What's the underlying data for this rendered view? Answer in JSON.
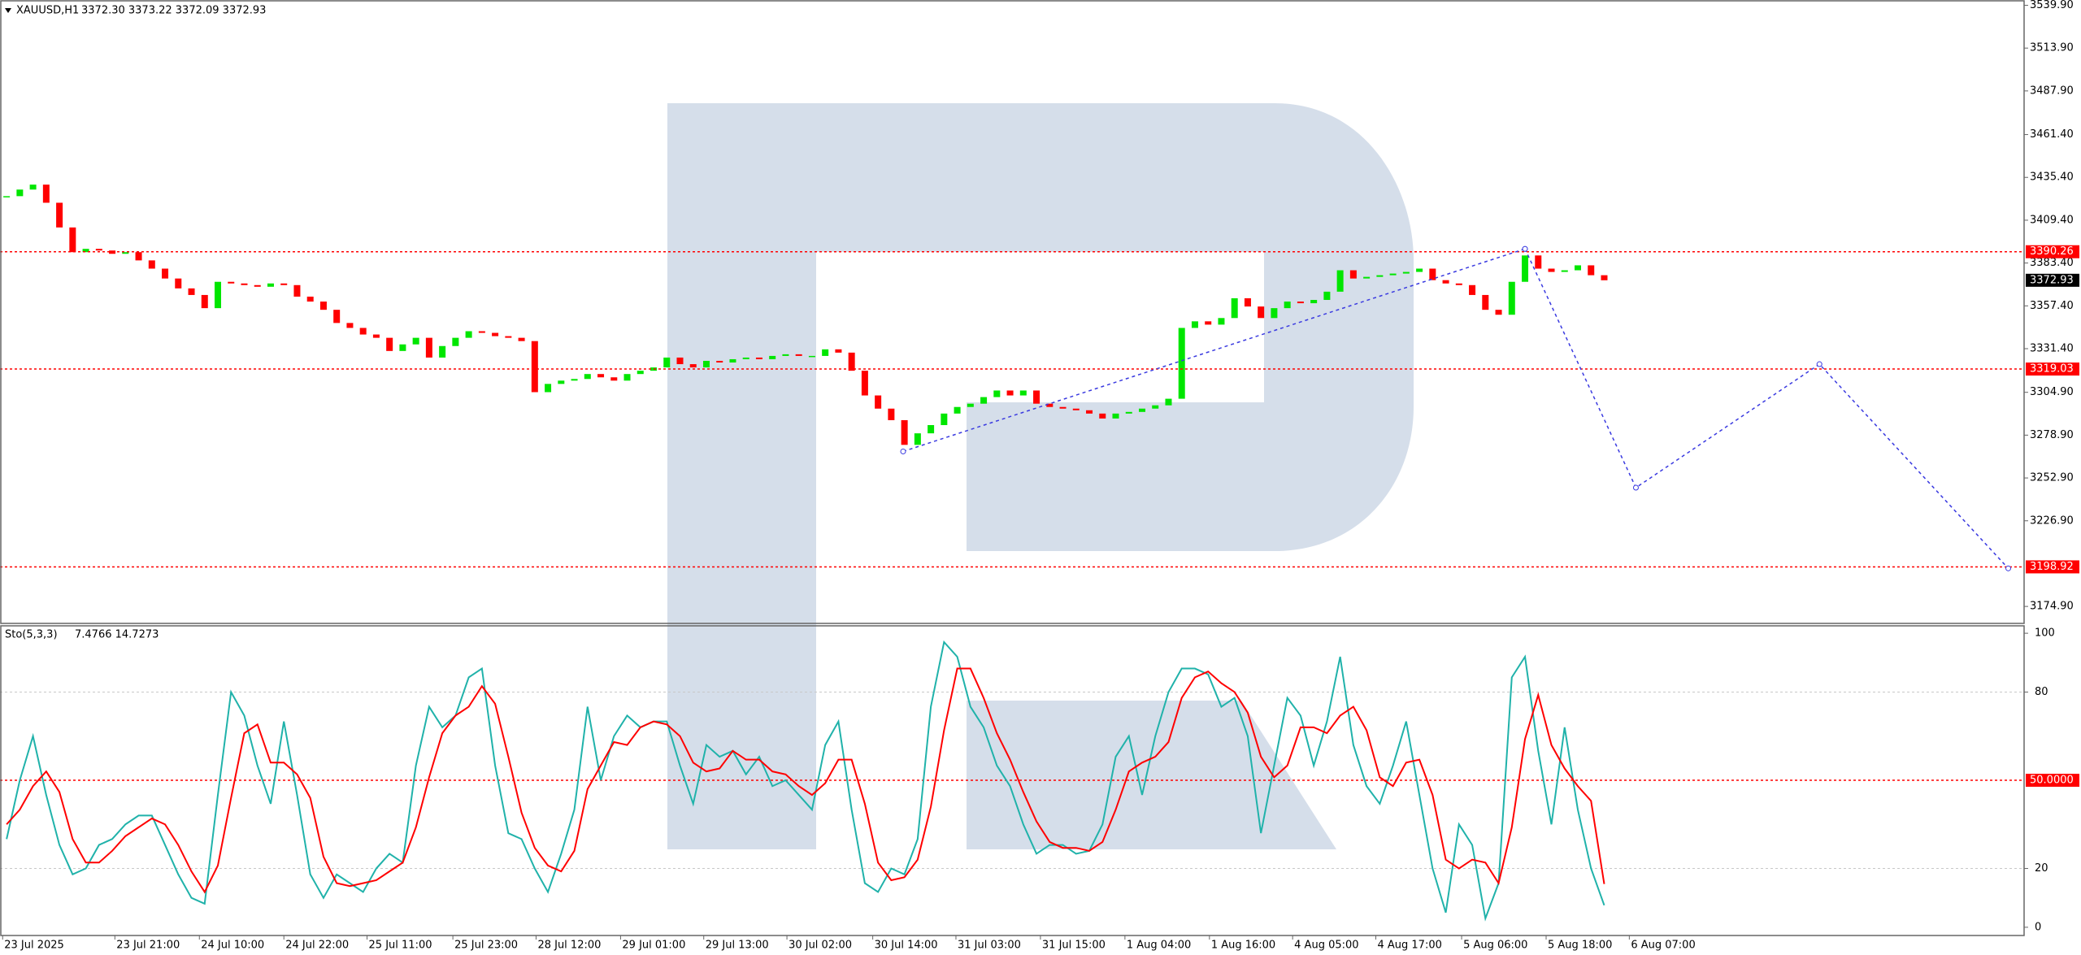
{
  "chart_data": [
    {
      "type": "candlestick",
      "title": "XAUUSD,H1",
      "subtitle": "3372.30 3373.22 3372.09 3372.93",
      "values": [
        3424,
        3428,
        3431,
        3420,
        3405,
        3390,
        3392,
        3391,
        3389,
        3390,
        3385,
        3380,
        3374,
        3368,
        3364,
        3356,
        3372,
        3371,
        3370,
        3369,
        3371,
        3370,
        3363,
        3360,
        3355,
        3347,
        3344,
        3340,
        3338,
        3330,
        3334,
        3338,
        3326,
        3333,
        3338,
        3342,
        3341,
        3339,
        3338,
        3336,
        3305,
        3310,
        3312,
        3313,
        3316,
        3314,
        3312,
        3316,
        3318,
        3320,
        3326,
        3322,
        3320,
        3324,
        3323,
        3325,
        3326,
        3325,
        3327,
        3328,
        3327,
        3327,
        3331,
        3329,
        3318,
        3303,
        3295,
        3288,
        3273,
        3280,
        3285,
        3292,
        3296,
        3298,
        3302,
        3306,
        3303,
        3306,
        3298,
        3296,
        3295,
        3294,
        3292,
        3289,
        3292,
        3293,
        3295,
        3297,
        3301,
        3344,
        3348,
        3346,
        3350,
        3362,
        3357,
        3350,
        3356,
        3360,
        3359,
        3361,
        3366,
        3379,
        3374,
        3375,
        3376,
        3377,
        3378,
        3380,
        3373,
        3371,
        3370,
        3364,
        3355,
        3352,
        3372,
        3388,
        3380,
        3378,
        3379,
        3382,
        3376,
        3372.93
      ],
      "up_color": "#00e600",
      "down_color": "#ff0000",
      "xlim": [
        -0.5,
        152.8
      ],
      "ylim": [
        3164.6,
        3543.1
      ],
      "yticks": [
        {
          "value": 3539.9,
          "label": "3539.90"
        },
        {
          "value": 3513.9,
          "label": "3513.90"
        },
        {
          "value": 3487.9,
          "label": "3487.90"
        },
        {
          "value": 3461.4,
          "label": "3461.40"
        },
        {
          "value": 3435.4,
          "label": "3435.40"
        },
        {
          "value": 3409.4,
          "label": "3409.40"
        },
        {
          "value": 3383.4,
          "label": "3383.40"
        },
        {
          "value": 3357.4,
          "label": "3357.40"
        },
        {
          "value": 3331.4,
          "label": "3331.40"
        },
        {
          "value": 3304.9,
          "label": "3304.90"
        },
        {
          "value": 3278.9,
          "label": "3278.90"
        },
        {
          "value": 3252.9,
          "label": "3252.90"
        },
        {
          "value": 3226.9,
          "label": "3226.90"
        },
        {
          "value": 3174.9,
          "label": "3174.90"
        }
      ],
      "levels": [
        3390.26,
        3319.03,
        3198.92
      ],
      "level_color": "#ff0000",
      "last_price": 3372.93,
      "trend_line": {
        "x": [
          67.9,
          115
        ],
        "y": [
          3269,
          3392
        ]
      },
      "forecast": {
        "x": [
          115,
          123.4,
          137.3,
          151.6
        ],
        "y": [
          3392,
          3247,
          3322,
          3198
        ]
      },
      "annotation_color": "#3a3ae0"
    },
    {
      "type": "line",
      "title": "Sto(5,3,3)",
      "subtitle": "7.4766 14.7273",
      "series": [
        {
          "color": "#20b2aa",
          "values": [
            30,
            50,
            65,
            45,
            28,
            18,
            20,
            28,
            30,
            35,
            38,
            38,
            28,
            18,
            10,
            8,
            45,
            80,
            72,
            55,
            42,
            70,
            45,
            18,
            10,
            18,
            15,
            12,
            20,
            25,
            22,
            55,
            75,
            68,
            72,
            85,
            88,
            55,
            32,
            30,
            20,
            12,
            25,
            40,
            75,
            50,
            65,
            72,
            68,
            70,
            70,
            55,
            42,
            62,
            58,
            60,
            52,
            58,
            48,
            50,
            45,
            40,
            62,
            70,
            40,
            15,
            12,
            20,
            18,
            30,
            75,
            97,
            92,
            75,
            68,
            55,
            48,
            35,
            25,
            28,
            28,
            25,
            26,
            35,
            58,
            65,
            45,
            65,
            80,
            88,
            88,
            86,
            75,
            78,
            65,
            32,
            55,
            78,
            72,
            55,
            70,
            92,
            62,
            48,
            42,
            55,
            70,
            45,
            20,
            5,
            35,
            28,
            3,
            15,
            85,
            92,
            60,
            35,
            68,
            40,
            20,
            7.4766
          ]
        },
        {
          "color": "#ff0000",
          "values": [
            35,
            40,
            48,
            53,
            46,
            30,
            22,
            22,
            26,
            31,
            34,
            37,
            35,
            28,
            19,
            12,
            21,
            44,
            66,
            69,
            56,
            56,
            52,
            44,
            24,
            15,
            14,
            15,
            16,
            19,
            22,
            34,
            51,
            66,
            72,
            75,
            82,
            76,
            58,
            39,
            27,
            21,
            19,
            26,
            47,
            55,
            63,
            62,
            68,
            70,
            69,
            65,
            56,
            53,
            54,
            60,
            57,
            57,
            53,
            52,
            48,
            45,
            49,
            57,
            57,
            42,
            22,
            16,
            17,
            23,
            41,
            67,
            88,
            88,
            78,
            66,
            57,
            46,
            36,
            29,
            27,
            27,
            26,
            29,
            40,
            53,
            56,
            58,
            63,
            78,
            85,
            87,
            83,
            80,
            73,
            58,
            51,
            55,
            68,
            68,
            66,
            72,
            75,
            67,
            51,
            48,
            56,
            57,
            45,
            23,
            20,
            23,
            22,
            15,
            34,
            64,
            79,
            62,
            54,
            48,
            43,
            14.7273
          ]
        }
      ],
      "xlim": [
        -0.5,
        152.8
      ],
      "ylim": [
        -2.8,
        102.8
      ],
      "yticks": [
        0,
        20,
        80,
        100
      ],
      "grid_ticks": [
        20,
        80
      ],
      "level": {
        "value": 50,
        "label": "50.0000"
      },
      "xticks": [
        {
          "value": -0.3,
          "label": "23 Jul 2025"
        },
        {
          "value": 8.2,
          "label": "23 Jul 21:00"
        },
        {
          "value": 14.6,
          "label": "24 Jul 10:00"
        },
        {
          "value": 21,
          "label": "24 Jul 22:00"
        },
        {
          "value": 27.3,
          "label": "25 Jul 11:00"
        },
        {
          "value": 33.8,
          "label": "25 Jul 23:00"
        },
        {
          "value": 40.1,
          "label": "28 Jul 12:00"
        },
        {
          "value": 46.5,
          "label": "29 Jul 01:00"
        },
        {
          "value": 52.8,
          "label": "29 Jul 13:00"
        },
        {
          "value": 59.1,
          "label": "30 Jul 02:00"
        },
        {
          "value": 65.6,
          "label": "30 Jul 14:00"
        },
        {
          "value": 71.9,
          "label": "31 Jul 03:00"
        },
        {
          "value": 78.3,
          "label": "31 Jul 15:00"
        },
        {
          "value": 84.7,
          "label": "1 Aug 04:00"
        },
        {
          "value": 91.1,
          "label": "1 Aug 16:00"
        },
        {
          "value": 97.4,
          "label": "4 Aug 05:00"
        },
        {
          "value": 103.7,
          "label": "4 Aug 17:00"
        },
        {
          "value": 110.2,
          "label": "5 Aug 06:00"
        },
        {
          "value": 116.6,
          "label": "5 Aug 18:00"
        },
        {
          "value": 122.9,
          "label": "6 Aug 07:00"
        }
      ]
    }
  ]
}
